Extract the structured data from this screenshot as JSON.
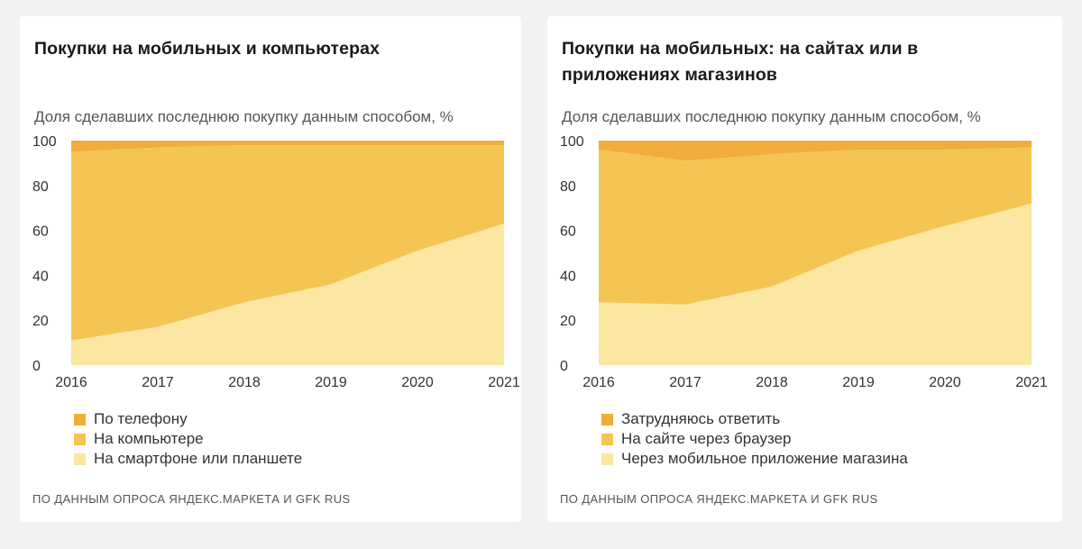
{
  "chart_data": [
    {
      "type": "area",
      "stacked": true,
      "title": "Покупки на мобильных и компьютерах",
      "subtitle": "Доля сделавших последнюю покупку данным способом, %",
      "x": [
        "2016",
        "2017",
        "2018",
        "2019",
        "2020",
        "2021"
      ],
      "ylim": [
        0,
        100
      ],
      "yticks": [
        "0",
        "20",
        "40",
        "60",
        "80",
        "100"
      ],
      "series": [
        {
          "name": "На смартфоне или планшете",
          "color": "#fbe6a2",
          "values": [
            11,
            17,
            28,
            36,
            51,
            63
          ]
        },
        {
          "name": "На компьютере",
          "color": "#f5c553",
          "values": [
            84,
            80,
            70,
            62,
            47,
            35
          ]
        },
        {
          "name": "По телефону",
          "color": "#f0ad3c",
          "values": [
            5,
            3,
            2,
            2,
            2,
            2
          ]
        }
      ],
      "legend_order": [
        "По телефону",
        "На компьютере",
        "На смартфоне или планшете"
      ],
      "source": "ПО ДАННЫМ ОПРОСА ЯНДЕКС.МАРКЕТА И GFK RUS"
    },
    {
      "type": "area",
      "stacked": true,
      "title": "Покупки на мобильных: на сайтах или в приложениях магазинов",
      "subtitle": "Доля сделавших последнюю покупку данным способом, %",
      "x": [
        "2016",
        "2017",
        "2018",
        "2019",
        "2020",
        "2021"
      ],
      "ylim": [
        0,
        100
      ],
      "yticks": [
        "0",
        "20",
        "40",
        "60",
        "80",
        "100"
      ],
      "series": [
        {
          "name": "Через мобильное приложение магазина",
          "color": "#fbe6a2",
          "values": [
            28,
            27,
            35,
            51,
            62,
            72
          ]
        },
        {
          "name": "На сайте через браузер",
          "color": "#f5c553",
          "values": [
            68,
            64,
            59,
            45,
            34,
            25
          ]
        },
        {
          "name": "Затрудняюсь ответить",
          "color": "#f0ad3c",
          "values": [
            4,
            9,
            6,
            4,
            4,
            3
          ]
        }
      ],
      "legend_order": [
        "Затрудняюсь ответить",
        "На сайте через браузер",
        "Через мобильное приложение магазина"
      ],
      "source": "ПО ДАННЫМ ОПРОСА ЯНДЕКС.МАРКЕТА И GFK RUS"
    }
  ]
}
